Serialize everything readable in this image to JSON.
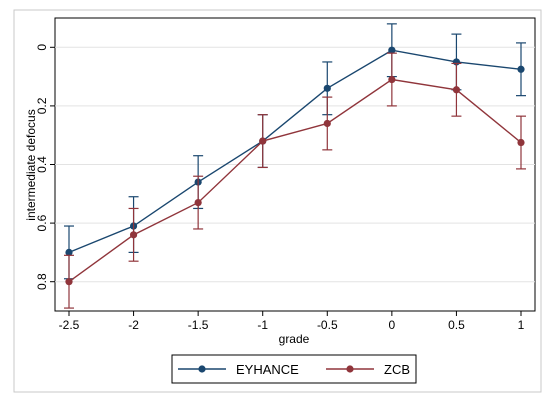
{
  "chart_data": {
    "type": "line",
    "title": "",
    "xlabel": "grade",
    "ylabel": "intermediate defocus",
    "x": [
      -2.5,
      -2,
      -1.5,
      -1,
      -0.5,
      0,
      0.5,
      1
    ],
    "x_tick_labels": [
      "-2.5",
      "-2",
      "-1.5",
      "-1",
      "-0.5",
      "0",
      "0.5",
      "1"
    ],
    "y_ticks": [
      0,
      0.2,
      0.4,
      0.6,
      0.8
    ],
    "y_tick_labels": [
      "0",
      "0.2",
      "0.4",
      "0.6",
      "0.8"
    ],
    "xlim": [
      -2.5,
      1
    ],
    "ylim": [
      -0.1,
      0.9
    ],
    "y_reversed": true,
    "grid": "horizontal",
    "legend_position": "bottom",
    "series": [
      {
        "name": "EYHANCE",
        "color": "#1a476f",
        "marker": "circle",
        "values": [
          0.7,
          0.61,
          0.46,
          0.32,
          0.14,
          0.01,
          0.05,
          0.075
        ],
        "err_lower": [
          0.61,
          0.51,
          0.37,
          0.23,
          0.05,
          -0.08,
          -0.045,
          -0.015
        ],
        "err_upper": [
          0.79,
          0.7,
          0.55,
          0.41,
          0.23,
          0.1,
          0.145,
          0.165
        ]
      },
      {
        "name": "ZCB",
        "color": "#90353b",
        "marker": "circle",
        "values": [
          0.8,
          0.64,
          0.53,
          0.32,
          0.26,
          0.11,
          0.145,
          0.325
        ],
        "err_lower": [
          0.71,
          0.55,
          0.44,
          0.23,
          0.17,
          0.02,
          0.055,
          0.235
        ],
        "err_upper": [
          0.89,
          0.73,
          0.62,
          0.41,
          0.35,
          0.2,
          0.235,
          0.415
        ]
      }
    ]
  }
}
